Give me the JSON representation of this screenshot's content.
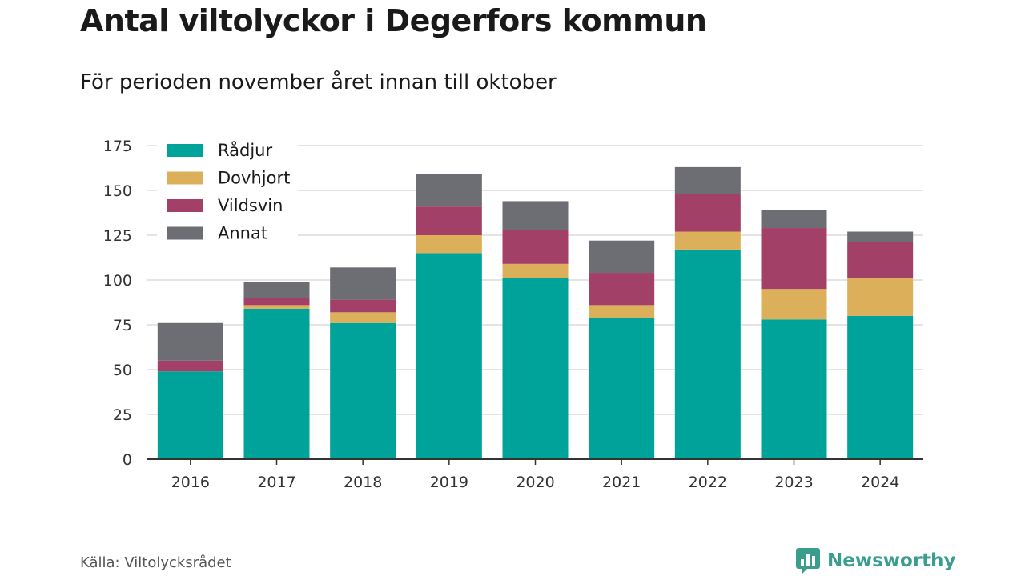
{
  "header": {
    "title": "Antal viltolyckor i Degerfors kommun",
    "subtitle": "För perioden november året innan till oktober"
  },
  "footer": {
    "source": "Källa: Viltolycksrådet",
    "brand": "Newsworthy",
    "brand_color": "#3a9e8c",
    "brand_icon": "bar-chart-logo-icon"
  },
  "chart_data": {
    "type": "bar",
    "stacked": true,
    "categories": [
      "2016",
      "2017",
      "2018",
      "2019",
      "2020",
      "2021",
      "2022",
      "2023",
      "2024"
    ],
    "series": [
      {
        "name": "Rådjur",
        "color": "#00a39a",
        "values": [
          49,
          84,
          76,
          115,
          101,
          79,
          117,
          78,
          80
        ]
      },
      {
        "name": "Dovhjort",
        "color": "#dcaf5a",
        "values": [
          0,
          2,
          6,
          10,
          8,
          7,
          10,
          17,
          21
        ]
      },
      {
        "name": "Vildsvin",
        "color": "#a34068",
        "values": [
          6,
          4,
          7,
          16,
          19,
          18,
          21,
          34,
          20
        ]
      },
      {
        "name": "Annat",
        "color": "#6d6d74",
        "values": [
          21,
          9,
          18,
          18,
          16,
          18,
          15,
          10,
          6
        ]
      }
    ],
    "ylim": [
      0,
      175
    ],
    "yticks": [
      0,
      25,
      50,
      75,
      100,
      125,
      150,
      175
    ],
    "grid": true,
    "legend_position": "top-left",
    "xlabel": "",
    "ylabel": ""
  }
}
